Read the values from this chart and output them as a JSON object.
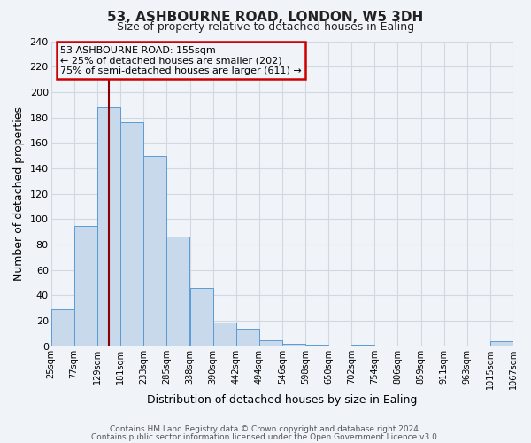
{
  "title": "53, ASHBOURNE ROAD, LONDON, W5 3DH",
  "subtitle": "Size of property relative to detached houses in Ealing",
  "xlabel": "Distribution of detached houses by size in Ealing",
  "ylabel": "Number of detached properties",
  "bin_edges": [
    25,
    77,
    129,
    181,
    233,
    285,
    338,
    390,
    442,
    494,
    546,
    598,
    650,
    702,
    754,
    806,
    859,
    911,
    963,
    1015,
    1067
  ],
  "bin_labels": [
    "25sqm",
    "77sqm",
    "129sqm",
    "181sqm",
    "233sqm",
    "285sqm",
    "338sqm",
    "390sqm",
    "442sqm",
    "494sqm",
    "546sqm",
    "598sqm",
    "650sqm",
    "702sqm",
    "754sqm",
    "806sqm",
    "859sqm",
    "911sqm",
    "963sqm",
    "1015sqm",
    "1067sqm"
  ],
  "counts": [
    29,
    95,
    188,
    176,
    150,
    86,
    46,
    19,
    14,
    5,
    2,
    1,
    0,
    1,
    0,
    0,
    0,
    0,
    0,
    4
  ],
  "bar_facecolor": "#c8d9ec",
  "bar_edgecolor": "#5b9bd5",
  "grid_color": "#d0d8e4",
  "background_color": "#f0f4f8",
  "vline_x": 155,
  "vline_color": "#8b0000",
  "annotation_line1": "53 ASHBOURNE ROAD: 155sqm",
  "annotation_line2": "← 25% of detached houses are smaller (202)",
  "annotation_line3": "75% of semi-detached houses are larger (611) →",
  "annotation_box_edgecolor": "#cc0000",
  "ylim": [
    0,
    240
  ],
  "yticks": [
    0,
    20,
    40,
    60,
    80,
    100,
    120,
    140,
    160,
    180,
    200,
    220,
    240
  ],
  "footer1": "Contains HM Land Registry data © Crown copyright and database right 2024.",
  "footer2": "Contains public sector information licensed under the Open Government Licence v3.0."
}
